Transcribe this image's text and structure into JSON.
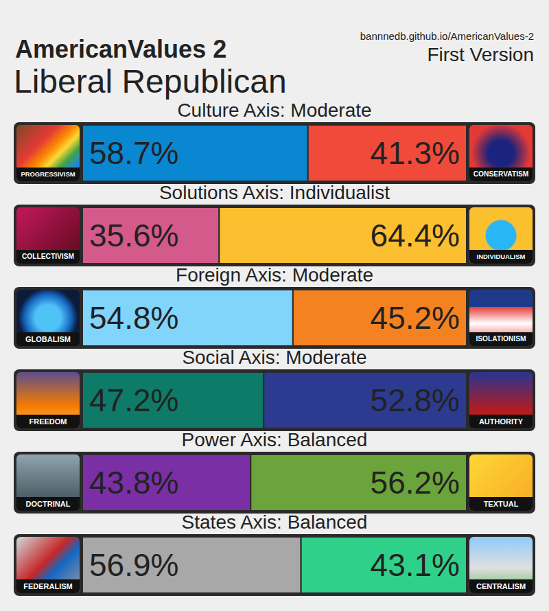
{
  "header": {
    "title": "AmericanValues 2",
    "result": "Liberal Republican",
    "url": "bannnedb.github.io/AmericanValues-2",
    "version": "First Version"
  },
  "chart_data": [
    {
      "type": "bar",
      "orientation": "horizontal",
      "stacked": true,
      "data_labels": true,
      "tick_labels": false,
      "title": "Culture Axis: Moderate",
      "categories": [
        null
      ],
      "xlim": [
        0,
        100
      ],
      "series": [
        {
          "name": "PROGRESSIVISM",
          "color": "#0a87d1",
          "values": [
            58.7
          ],
          "value_labels": [
            "58.7%"
          ]
        },
        {
          "name": "CONSERVATISM",
          "color": "#f04a3a",
          "values": [
            41.3
          ],
          "value_labels": [
            "41.3%"
          ]
        }
      ]
    },
    {
      "type": "bar",
      "orientation": "horizontal",
      "stacked": true,
      "data_labels": true,
      "tick_labels": false,
      "title": "Solutions Axis: Individualist",
      "categories": [
        null
      ],
      "xlim": [
        0,
        100
      ],
      "series": [
        {
          "name": "COLLECTIVISM",
          "color": "#d45a8b",
          "values": [
            35.6
          ],
          "value_labels": [
            "35.6%"
          ]
        },
        {
          "name": "INDIVIDUALISM",
          "color": "#fbbf2f",
          "values": [
            64.4
          ],
          "value_labels": [
            "64.4%"
          ]
        }
      ]
    },
    {
      "type": "bar",
      "orientation": "horizontal",
      "stacked": true,
      "data_labels": true,
      "tick_labels": false,
      "title": "Foreign Axis: Moderate",
      "categories": [
        null
      ],
      "xlim": [
        0,
        100
      ],
      "series": [
        {
          "name": "GLOBALISM",
          "color": "#81d4fa",
          "values": [
            54.8
          ],
          "value_labels": [
            "54.8%"
          ]
        },
        {
          "name": "ISOLATIONISM",
          "color": "#f58220",
          "values": [
            45.2
          ],
          "value_labels": [
            "45.2%"
          ]
        }
      ]
    },
    {
      "type": "bar",
      "orientation": "horizontal",
      "stacked": true,
      "data_labels": true,
      "tick_labels": false,
      "title": "Social Axis: Moderate",
      "categories": [
        null
      ],
      "xlim": [
        0,
        100
      ],
      "series": [
        {
          "name": "FREEDOM",
          "color": "#0e7a68",
          "values": [
            47.2
          ],
          "value_labels": [
            "47.2%"
          ]
        },
        {
          "name": "AUTHORITY",
          "color": "#2c3a8f",
          "values": [
            52.8
          ],
          "value_labels": [
            "52.8%"
          ]
        }
      ]
    },
    {
      "type": "bar",
      "orientation": "horizontal",
      "stacked": true,
      "data_labels": true,
      "tick_labels": false,
      "title": "Power Axis: Balanced",
      "categories": [
        null
      ],
      "xlim": [
        0,
        100
      ],
      "series": [
        {
          "name": "DOCTRINAL",
          "color": "#7b2fa5",
          "values": [
            43.8
          ],
          "value_labels": [
            "43.8%"
          ]
        },
        {
          "name": "TEXTUAL",
          "color": "#6aa43a",
          "values": [
            56.2
          ],
          "value_labels": [
            "56.2%"
          ]
        }
      ]
    },
    {
      "type": "bar",
      "orientation": "horizontal",
      "stacked": true,
      "data_labels": true,
      "tick_labels": false,
      "title": "States Axis: Balanced",
      "categories": [
        null
      ],
      "xlim": [
        0,
        100
      ],
      "series": [
        {
          "name": "FEDERALISM",
          "color": "#a8a8a8",
          "values": [
            56.9
          ],
          "value_labels": [
            "56.9%"
          ]
        },
        {
          "name": "CENTRALISM",
          "color": "#2fd08a",
          "values": [
            43.1
          ],
          "value_labels": [
            "43.1%"
          ]
        }
      ]
    }
  ]
}
